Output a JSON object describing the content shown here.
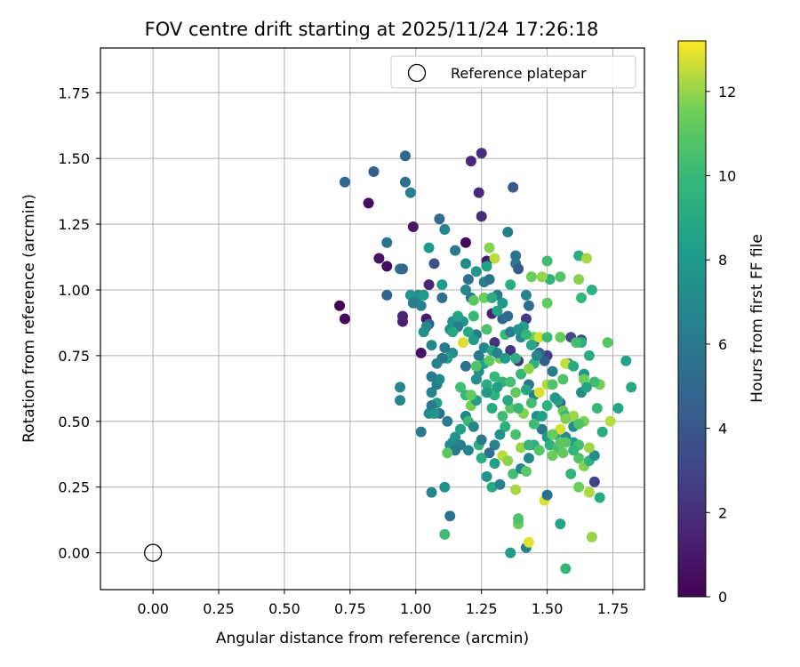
{
  "chart_data": {
    "type": "scatter",
    "title": "FOV centre drift starting at 2025/11/24 17:26:18",
    "xlabel": "Angular distance from reference (arcmin)",
    "ylabel": "Rotation from reference (arcmin)",
    "xlim": [
      -0.2,
      1.87
    ],
    "ylim": [
      -0.14,
      1.92
    ],
    "xticks": [
      "0.00",
      "0.25",
      "0.50",
      "0.75",
      "1.00",
      "1.25",
      "1.50",
      "1.75"
    ],
    "yticks": [
      "0.00",
      "0.25",
      "0.50",
      "0.75",
      "1.00",
      "1.25",
      "1.50",
      "1.75"
    ],
    "grid": true,
    "legend": {
      "position": "top-right",
      "entries": [
        "Reference platepar"
      ]
    },
    "reference_point": {
      "x": 0.0,
      "y": 0.0
    },
    "colorbar": {
      "label": "Hours from first FF file",
      "colormap": "viridis",
      "range": [
        0,
        13.2
      ],
      "ticks": [
        "0",
        "2",
        "4",
        "6",
        "8",
        "10",
        "12"
      ]
    },
    "points": [
      [
        0.71,
        0.94,
        0.0
      ],
      [
        0.73,
        0.89,
        0.3
      ],
      [
        0.82,
        1.33,
        0.5
      ],
      [
        0.86,
        1.12,
        0.8
      ],
      [
        0.89,
        1.09,
        0.6
      ],
      [
        0.95,
        0.88,
        1.2
      ],
      [
        0.95,
        0.9,
        1.5
      ],
      [
        0.99,
        1.24,
        0.9
      ],
      [
        1.02,
        0.76,
        0.7
      ],
      [
        1.04,
        0.89,
        1.0
      ],
      [
        1.05,
        1.02,
        1.6
      ],
      [
        1.19,
        1.18,
        0.4
      ],
      [
        1.21,
        1.49,
        1.7
      ],
      [
        1.24,
        1.37,
        1.8
      ],
      [
        1.25,
        1.52,
        2.0
      ],
      [
        1.25,
        1.28,
        1.9
      ],
      [
        1.27,
        1.11,
        1.2
      ],
      [
        1.29,
        0.91,
        1.5
      ],
      [
        1.3,
        0.8,
        2.1
      ],
      [
        1.36,
        0.77,
        2.4
      ],
      [
        1.39,
        0.73,
        2.2
      ],
      [
        1.42,
        0.89,
        2.6
      ],
      [
        1.47,
        0.76,
        2.3
      ],
      [
        1.5,
        0.75,
        2.8
      ],
      [
        1.59,
        0.82,
        3.2
      ],
      [
        1.63,
        0.81,
        3.6
      ],
      [
        1.68,
        0.27,
        3.0
      ],
      [
        1.37,
        1.39,
        4.1
      ],
      [
        0.73,
        1.41,
        4.8
      ],
      [
        0.84,
        1.45,
        4.5
      ],
      [
        0.96,
        1.51,
        4.9
      ],
      [
        0.96,
        1.41,
        5.2
      ],
      [
        0.98,
        1.37,
        6.5
      ],
      [
        0.89,
        1.18,
        5.6
      ],
      [
        0.89,
        0.98,
        4.7
      ],
      [
        0.94,
        1.08,
        5.8
      ],
      [
        0.95,
        1.08,
        5.0
      ],
      [
        1.0,
        0.96,
        5.4
      ],
      [
        1.05,
        0.87,
        4.6
      ],
      [
        1.07,
        1.1,
        3.8
      ],
      [
        1.09,
        1.27,
        5.1
      ],
      [
        1.11,
        1.23,
        6.8
      ],
      [
        1.1,
        0.97,
        5.3
      ],
      [
        1.13,
        0.85,
        7.2
      ],
      [
        1.15,
        1.15,
        6.0
      ],
      [
        1.19,
        1.1,
        7.0
      ],
      [
        1.2,
        1.04,
        5.5
      ],
      [
        1.21,
        0.97,
        5.9
      ],
      [
        1.23,
        0.83,
        6.3
      ],
      [
        1.26,
        1.03,
        6.6
      ],
      [
        1.28,
        1.04,
        5.7
      ],
      [
        1.31,
        0.98,
        6.1
      ],
      [
        1.33,
        0.89,
        4.9
      ],
      [
        1.35,
        0.9,
        5.2
      ],
      [
        1.35,
        1.22,
        6.4
      ],
      [
        1.38,
        1.13,
        5.6
      ],
      [
        1.38,
        1.1,
        6.0
      ],
      [
        1.39,
        1.08,
        4.2
      ],
      [
        1.42,
        0.98,
        6.7
      ],
      [
        1.43,
        0.94,
        5.4
      ],
      [
        1.45,
        0.8,
        5.8
      ],
      [
        1.47,
        0.76,
        5.0
      ],
      [
        1.49,
        0.73,
        4.4
      ],
      [
        1.52,
        0.69,
        6.2
      ],
      [
        1.55,
        0.57,
        4.6
      ],
      [
        1.58,
        0.72,
        5.3
      ],
      [
        1.4,
        0.82,
        7.1
      ],
      [
        1.41,
        0.86,
        8.4
      ],
      [
        1.38,
        0.74,
        9.2
      ],
      [
        1.4,
        0.68,
        9.9
      ],
      [
        1.43,
        0.64,
        5.8
      ],
      [
        1.45,
        0.6,
        6.4
      ],
      [
        1.46,
        0.52,
        7.5
      ],
      [
        1.48,
        0.47,
        6.1
      ],
      [
        1.5,
        0.44,
        7.8
      ],
      [
        1.51,
        0.41,
        9.4
      ],
      [
        1.54,
        0.4,
        10.5
      ],
      [
        1.56,
        0.38,
        11.2
      ],
      [
        1.57,
        0.44,
        6.9
      ],
      [
        1.6,
        0.42,
        8.2
      ],
      [
        1.62,
        0.36,
        10.7
      ],
      [
        1.64,
        0.33,
        11.8
      ],
      [
        1.66,
        0.35,
        9.6
      ],
      [
        1.68,
        0.37,
        7.4
      ],
      [
        1.7,
        0.21,
        8.9
      ],
      [
        1.62,
        0.25,
        11.5
      ],
      [
        1.66,
        0.23,
        12.3
      ],
      [
        1.67,
        0.06,
        12.0
      ],
      [
        1.57,
        -0.06,
        9.8
      ],
      [
        1.55,
        0.11,
        8.6
      ],
      [
        1.42,
        0.02,
        6.5
      ],
      [
        1.43,
        0.04,
        12.9
      ],
      [
        1.36,
        0.0,
        8.1
      ],
      [
        1.39,
        0.11,
        11.3
      ],
      [
        1.39,
        0.13,
        10.6
      ],
      [
        1.11,
        0.07,
        10.2
      ],
      [
        1.13,
        0.14,
        5.6
      ],
      [
        1.11,
        0.25,
        7.6
      ],
      [
        1.06,
        0.23,
        6.7
      ],
      [
        1.02,
        0.46,
        6.0
      ],
      [
        1.05,
        0.53,
        7.2
      ],
      [
        1.08,
        0.57,
        8.3
      ],
      [
        1.09,
        0.53,
        5.4
      ],
      [
        1.12,
        0.5,
        6.3
      ],
      [
        1.14,
        0.42,
        5.9
      ],
      [
        1.15,
        0.44,
        7.7
      ],
      [
        1.17,
        0.41,
        6.4
      ],
      [
        1.19,
        0.52,
        6.8
      ],
      [
        1.2,
        0.5,
        10.1
      ],
      [
        1.21,
        0.56,
        11.6
      ],
      [
        1.22,
        0.48,
        6.9
      ],
      [
        1.24,
        0.41,
        9.5
      ],
      [
        1.25,
        0.43,
        5.9
      ],
      [
        1.27,
        0.29,
        7.5
      ],
      [
        1.29,
        0.25,
        9.0
      ],
      [
        1.3,
        0.34,
        8.3
      ],
      [
        1.32,
        0.26,
        6.6
      ],
      [
        1.33,
        0.37,
        12.5
      ],
      [
        1.35,
        0.35,
        11.9
      ],
      [
        1.37,
        0.3,
        10.3
      ],
      [
        1.38,
        0.24,
        12.2
      ],
      [
        1.4,
        0.32,
        6.7
      ],
      [
        1.42,
        0.31,
        11.0
      ],
      [
        1.43,
        0.36,
        7.0
      ],
      [
        1.45,
        0.41,
        9.3
      ],
      [
        1.47,
        0.39,
        10.8
      ],
      [
        1.49,
        0.2,
        12.8
      ],
      [
        1.5,
        0.22,
        5.5
      ],
      [
        1.52,
        0.37,
        11.4
      ],
      [
        1.53,
        0.45,
        8.1
      ],
      [
        1.55,
        0.47,
        12.7
      ],
      [
        1.57,
        0.42,
        10.9
      ],
      [
        1.59,
        0.3,
        9.7
      ],
      [
        1.6,
        0.48,
        7.3
      ],
      [
        1.62,
        0.41,
        10.4
      ],
      [
        1.64,
        0.5,
        11.7
      ],
      [
        1.66,
        0.4,
        12.1
      ],
      [
        1.69,
        0.55,
        10.0
      ],
      [
        1.71,
        0.46,
        9.1
      ],
      [
        1.74,
        0.5,
        12.4
      ],
      [
        1.77,
        0.55,
        8.8
      ],
      [
        1.8,
        0.73,
        8.5
      ],
      [
        1.82,
        0.63,
        9.0
      ],
      [
        1.73,
        0.8,
        10.9
      ],
      [
        1.7,
        0.64,
        11.6
      ],
      [
        1.68,
        0.65,
        10.2
      ],
      [
        1.66,
        0.75,
        9.1
      ],
      [
        1.64,
        0.68,
        8.0
      ],
      [
        1.63,
        0.61,
        7.1
      ],
      [
        1.63,
        0.8,
        9.4
      ],
      [
        1.61,
        0.8,
        10.3
      ],
      [
        1.63,
        0.97,
        9.8
      ],
      [
        1.62,
        1.04,
        11.8
      ],
      [
        1.62,
        1.13,
        9.2
      ],
      [
        1.65,
        1.12,
        12.2
      ],
      [
        1.67,
        1.0,
        9.5
      ],
      [
        1.55,
        1.05,
        10.8
      ],
      [
        1.51,
        1.04,
        9.6
      ],
      [
        1.5,
        1.11,
        10.2
      ],
      [
        1.5,
        0.95,
        11.1
      ],
      [
        1.48,
        1.05,
        12.0
      ],
      [
        1.44,
        1.05,
        11.4
      ],
      [
        1.45,
        0.82,
        11.6
      ],
      [
        1.47,
        0.82,
        12.7
      ],
      [
        1.5,
        0.82,
        10.1
      ],
      [
        1.55,
        0.82,
        11.3
      ],
      [
        1.57,
        0.72,
        12.5
      ],
      [
        1.45,
        0.72,
        9.5
      ],
      [
        1.43,
        0.7,
        11.9
      ],
      [
        1.5,
        0.64,
        12.3
      ],
      [
        1.52,
        0.64,
        10.7
      ],
      [
        1.54,
        0.58,
        9.0
      ],
      [
        1.56,
        0.54,
        11.2
      ],
      [
        1.57,
        0.52,
        9.9
      ],
      [
        1.6,
        0.52,
        12.1
      ],
      [
        1.62,
        0.49,
        10.6
      ],
      [
        1.6,
        0.39,
        9.7
      ],
      [
        1.57,
        0.51,
        11.7
      ],
      [
        1.55,
        0.42,
        11.0
      ],
      [
        1.52,
        0.45,
        11.3
      ],
      [
        1.47,
        0.61,
        12.8
      ],
      [
        1.44,
        0.57,
        10.3
      ],
      [
        1.41,
        0.53,
        11.8
      ],
      [
        1.36,
        0.55,
        10.9
      ],
      [
        1.33,
        0.52,
        10.2
      ],
      [
        1.3,
        0.6,
        9.3
      ],
      [
        1.28,
        0.61,
        9.9
      ],
      [
        1.27,
        0.64,
        9.2
      ],
      [
        1.23,
        0.58,
        8.3
      ],
      [
        1.23,
        0.66,
        7.5
      ],
      [
        1.26,
        0.72,
        8.5
      ],
      [
        1.28,
        0.73,
        11.1
      ],
      [
        1.32,
        0.74,
        11.6
      ],
      [
        1.3,
        0.67,
        10.0
      ],
      [
        1.33,
        0.65,
        9.6
      ],
      [
        1.36,
        0.65,
        10.4
      ],
      [
        1.38,
        0.61,
        11.2
      ],
      [
        1.22,
        0.9,
        10.0
      ],
      [
        1.27,
        0.85,
        10.6
      ],
      [
        1.26,
        0.97,
        11.4
      ],
      [
        1.29,
        0.97,
        9.2
      ],
      [
        1.31,
        0.92,
        8.5
      ],
      [
        1.34,
        0.83,
        10.0
      ],
      [
        1.33,
        0.95,
        7.9
      ],
      [
        1.36,
        1.02,
        9.1
      ],
      [
        1.3,
        1.12,
        12.4
      ],
      [
        1.28,
        1.16,
        11.8
      ],
      [
        1.27,
        1.09,
        8.4
      ],
      [
        1.23,
        1.07,
        7.9
      ],
      [
        1.22,
        0.96,
        11.0
      ],
      [
        1.19,
        1.0,
        6.8
      ],
      [
        1.18,
        0.88,
        7.7
      ],
      [
        1.2,
        0.84,
        9.0
      ],
      [
        1.22,
        0.81,
        8.2
      ],
      [
        1.18,
        0.8,
        12.8
      ],
      [
        1.14,
        0.76,
        7.3
      ],
      [
        1.12,
        0.74,
        8.4
      ],
      [
        1.1,
        0.74,
        5.6
      ],
      [
        1.08,
        0.72,
        6.6
      ],
      [
        1.06,
        0.67,
        6.0
      ],
      [
        1.08,
        0.64,
        6.4
      ],
      [
        1.09,
        0.66,
        7.0
      ],
      [
        1.06,
        0.61,
        6.9
      ],
      [
        1.06,
        0.56,
        5.9
      ],
      [
        1.07,
        0.53,
        7.6
      ],
      [
        1.02,
        0.94,
        6.6
      ],
      [
        1.01,
        0.98,
        7.3
      ],
      [
        0.98,
        0.98,
        7.8
      ],
      [
        0.99,
        0.95,
        6.2
      ],
      [
        1.03,
        0.98,
        8.0
      ],
      [
        1.04,
        0.86,
        7.0
      ],
      [
        1.06,
        0.79,
        6.8
      ],
      [
        1.11,
        0.78,
        6.1
      ],
      [
        1.14,
        0.88,
        7.7
      ],
      [
        1.16,
        0.9,
        8.6
      ],
      [
        1.16,
        0.86,
        6.4
      ],
      [
        1.19,
        0.71,
        5.6
      ],
      [
        1.24,
        0.69,
        7.3
      ],
      [
        1.24,
        0.75,
        6.0
      ],
      [
        1.26,
        0.78,
        7.0
      ],
      [
        1.29,
        0.77,
        8.9
      ],
      [
        1.31,
        0.76,
        6.5
      ],
      [
        1.34,
        0.74,
        8.0
      ],
      [
        1.36,
        0.84,
        6.1
      ],
      [
        1.39,
        0.85,
        7.6
      ],
      [
        1.42,
        0.83,
        9.8
      ],
      [
        1.44,
        0.79,
        8.7
      ],
      [
        1.46,
        0.75,
        6.9
      ],
      [
        1.42,
        0.62,
        8.8
      ],
      [
        1.39,
        0.55,
        10.0
      ],
      [
        1.34,
        0.48,
        9.4
      ],
      [
        1.32,
        0.45,
        7.6
      ],
      [
        1.3,
        0.41,
        6.6
      ],
      [
        1.28,
        0.38,
        5.3
      ],
      [
        1.25,
        0.36,
        9.1
      ],
      [
        1.2,
        0.39,
        6.9
      ],
      [
        1.17,
        0.47,
        8.4
      ],
      [
        1.13,
        0.41,
        7.2
      ],
      [
        1.15,
        0.39,
        6.0
      ],
      [
        1.12,
        0.38,
        11.0
      ],
      [
        0.94,
        0.63,
        6.8
      ],
      [
        0.94,
        0.58,
        6.9
      ],
      [
        1.03,
        0.84,
        7.4
      ],
      [
        1.05,
        1.16,
        7.9
      ],
      [
        1.1,
        1.02,
        8.2
      ],
      [
        1.14,
        0.84,
        8.8
      ],
      [
        1.17,
        0.63,
        10.3
      ],
      [
        1.19,
        0.6,
        9.8
      ],
      [
        1.21,
        0.6,
        11.2
      ],
      [
        1.23,
        0.71,
        10.7
      ],
      [
        1.27,
        0.61,
        8.1
      ],
      [
        1.29,
        0.55,
        9.0
      ],
      [
        1.31,
        0.63,
        8.4
      ],
      [
        1.35,
        0.58,
        8.9
      ],
      [
        1.38,
        0.45,
        10.5
      ],
      [
        1.4,
        0.4,
        12.0
      ],
      [
        1.43,
        0.41,
        9.7
      ],
      [
        1.45,
        0.49,
        10.2
      ],
      [
        1.48,
        0.52,
        8.5
      ],
      [
        1.5,
        0.56,
        9.6
      ],
      [
        1.53,
        0.59,
        7.9
      ],
      [
        1.56,
        0.66,
        10.6
      ],
      [
        1.6,
        0.71,
        9.0
      ],
      [
        1.64,
        0.66,
        11.5
      ],
      [
        1.65,
        0.63,
        8.7
      ]
    ]
  }
}
